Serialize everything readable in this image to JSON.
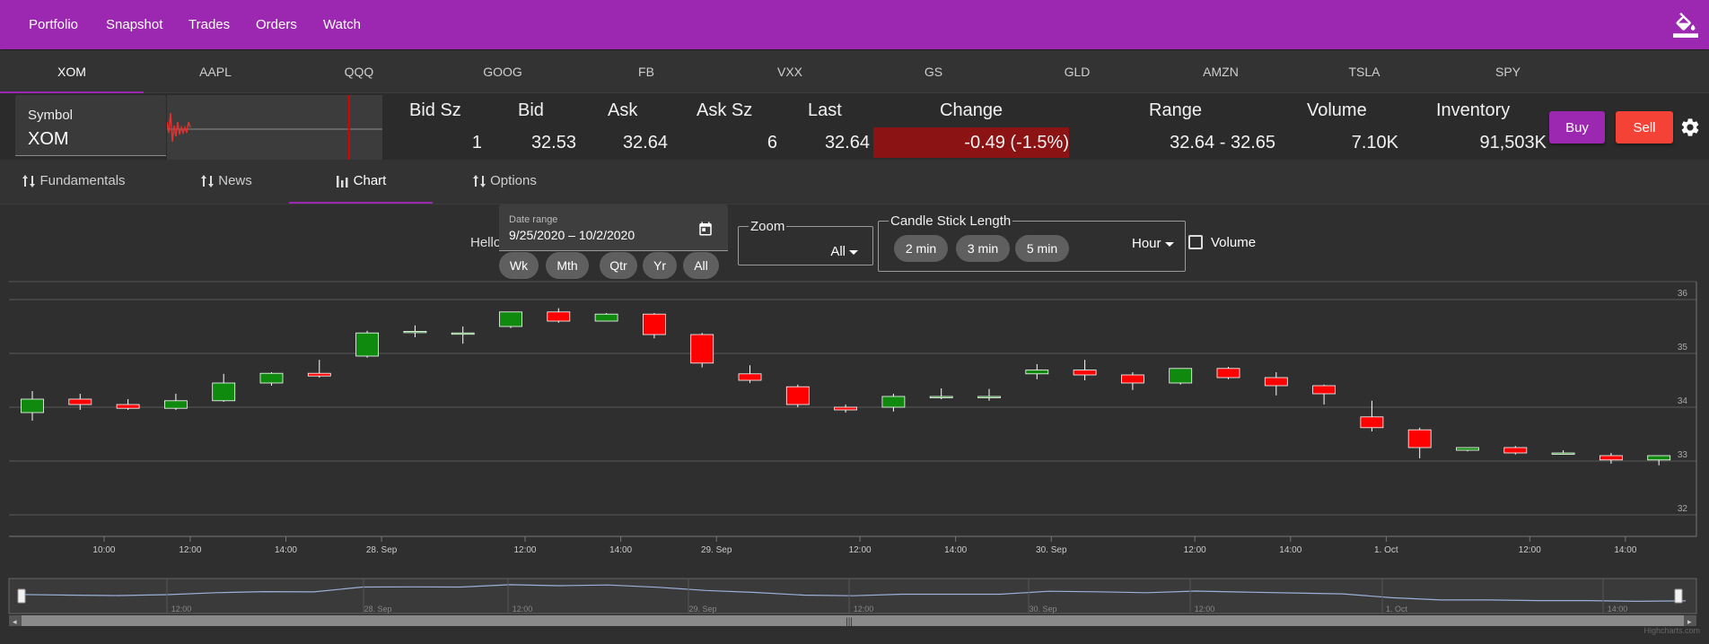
{
  "nav": {
    "items": [
      {
        "id": "portfolio",
        "label": "Portfolio"
      },
      {
        "id": "snapshot",
        "label": "Snapshot"
      },
      {
        "id": "trades",
        "label": "Trades"
      },
      {
        "id": "orders",
        "label": "Orders"
      },
      {
        "id": "watch",
        "label": "Watch"
      }
    ],
    "theme_icon": "paint-bucket-icon"
  },
  "symbol_tabs": [
    "XOM",
    "AAPL",
    "QQQ",
    "GOOG",
    "FB",
    "VXX",
    "GS",
    "GLD",
    "AMZN",
    "TSLA",
    "SPY"
  ],
  "active_symbol_tab": "XOM",
  "quote": {
    "symbol_label": "Symbol",
    "symbol_value": "XOM",
    "headers": {
      "bid_sz": "Bid Sz",
      "bid": "Bid",
      "ask": "Ask",
      "ask_sz": "Ask Sz",
      "last": "Last",
      "change": "Change",
      "range": "Range",
      "volume": "Volume",
      "inventory": "Inventory"
    },
    "values": {
      "bid_sz": "1",
      "bid": "32.53",
      "ask": "32.64",
      "ask_sz": "6",
      "last": "32.64",
      "change": "-0.49 (-1.5%)",
      "range": "32.64 - 32.65",
      "volume": "7.10K",
      "inventory": "91,503K"
    },
    "change_color": "#8b1313",
    "buy_label": "Buy",
    "sell_label": "Sell"
  },
  "sub_tabs": [
    {
      "id": "fundamentals",
      "label": "Fundamentals",
      "icon": "sort-arrows-icon"
    },
    {
      "id": "news",
      "label": "News",
      "icon": "sort-arrows-icon"
    },
    {
      "id": "chart",
      "label": "Chart",
      "icon": "bar-chart-icon"
    },
    {
      "id": "options",
      "label": "Options",
      "icon": "sort-arrows-icon"
    }
  ],
  "active_sub_tab": "chart",
  "controls": {
    "hello": "Hello",
    "date_range_label": "Date range",
    "date_range_value": "9/25/2020 – 10/2/2020",
    "period_chips": [
      "Wk",
      "Mth",
      "Qtr",
      "Yr",
      "All"
    ],
    "zoom_label": "Zoom",
    "zoom_value": "All",
    "candle_label": "Candle Stick Length",
    "candle_chips": [
      "2 min",
      "3 min",
      "5 min"
    ],
    "candle_unit": "Hour",
    "volume_label": "Volume",
    "volume_checked": false
  },
  "chart_data": {
    "type": "candlestick",
    "ylim": [
      31.6,
      36.2
    ],
    "y_ticks": [
      32,
      33,
      34,
      35,
      36
    ],
    "x_labels": [
      {
        "i": 1.5,
        "text": "10:00"
      },
      {
        "i": 3.3,
        "text": "12:00"
      },
      {
        "i": 5.3,
        "text": "14:00"
      },
      {
        "i": 7.3,
        "text": "28. Sep"
      },
      {
        "i": 10.3,
        "text": "12:00"
      },
      {
        "i": 12.3,
        "text": "14:00"
      },
      {
        "i": 14.3,
        "text": "29. Sep"
      },
      {
        "i": 17.3,
        "text": "12:00"
      },
      {
        "i": 19.3,
        "text": "14:00"
      },
      {
        "i": 21.3,
        "text": "30. Sep"
      },
      {
        "i": 24.3,
        "text": "12:00"
      },
      {
        "i": 26.3,
        "text": "14:00"
      },
      {
        "i": 28.3,
        "text": "1. Oct"
      },
      {
        "i": 31.3,
        "text": "12:00"
      },
      {
        "i": 33.3,
        "text": "14:00"
      }
    ],
    "candles": [
      {
        "o": 33.9,
        "h": 34.3,
        "l": 33.75,
        "c": 34.15
      },
      {
        "o": 34.15,
        "h": 34.25,
        "l": 33.95,
        "c": 34.05
      },
      {
        "o": 34.05,
        "h": 34.15,
        "l": 33.95,
        "c": 33.98
      },
      {
        "o": 33.98,
        "h": 34.25,
        "l": 33.95,
        "c": 34.12
      },
      {
        "o": 34.12,
        "h": 34.62,
        "l": 34.1,
        "c": 34.45
      },
      {
        "o": 34.45,
        "h": 34.65,
        "l": 34.4,
        "c": 34.63
      },
      {
        "o": 34.63,
        "h": 34.88,
        "l": 34.55,
        "c": 34.58
      },
      {
        "o": 34.95,
        "h": 35.42,
        "l": 34.92,
        "c": 35.38
      },
      {
        "o": 35.41,
        "h": 35.52,
        "l": 35.3,
        "c": 35.41
      },
      {
        "o": 35.38,
        "h": 35.5,
        "l": 35.18,
        "c": 35.38
      },
      {
        "o": 35.5,
        "h": 35.75,
        "l": 35.47,
        "c": 35.77
      },
      {
        "o": 35.77,
        "h": 35.84,
        "l": 35.57,
        "c": 35.6
      },
      {
        "o": 35.6,
        "h": 35.75,
        "l": 35.6,
        "c": 35.73
      },
      {
        "o": 35.73,
        "h": 35.75,
        "l": 35.28,
        "c": 35.35
      },
      {
        "o": 35.35,
        "h": 35.38,
        "l": 34.74,
        "c": 34.82
      },
      {
        "o": 34.62,
        "h": 34.78,
        "l": 34.45,
        "c": 34.5
      },
      {
        "o": 34.38,
        "h": 34.42,
        "l": 34.0,
        "c": 34.05
      },
      {
        "o": 34.0,
        "h": 34.05,
        "l": 33.9,
        "c": 33.95
      },
      {
        "o": 34.0,
        "h": 34.25,
        "l": 33.92,
        "c": 34.2
      },
      {
        "o": 34.2,
        "h": 34.35,
        "l": 34.15,
        "c": 34.2
      },
      {
        "o": 34.2,
        "h": 34.34,
        "l": 34.12,
        "c": 34.2
      },
      {
        "o": 34.62,
        "h": 34.8,
        "l": 34.52,
        "c": 34.69
      },
      {
        "o": 34.69,
        "h": 34.88,
        "l": 34.5,
        "c": 34.6
      },
      {
        "o": 34.6,
        "h": 34.65,
        "l": 34.32,
        "c": 34.45
      },
      {
        "o": 34.45,
        "h": 34.72,
        "l": 34.42,
        "c": 34.72
      },
      {
        "o": 34.72,
        "h": 34.75,
        "l": 34.52,
        "c": 34.55
      },
      {
        "o": 34.55,
        "h": 34.65,
        "l": 34.22,
        "c": 34.4
      },
      {
        "o": 34.4,
        "h": 34.42,
        "l": 34.05,
        "c": 34.25
      },
      {
        "o": 33.82,
        "h": 34.12,
        "l": 33.55,
        "c": 33.62
      },
      {
        "o": 33.58,
        "h": 33.62,
        "l": 33.05,
        "c": 33.25
      },
      {
        "o": 33.2,
        "h": 33.25,
        "l": 33.18,
        "c": 33.25
      },
      {
        "o": 33.25,
        "h": 33.28,
        "l": 33.12,
        "c": 33.15
      },
      {
        "o": 33.15,
        "h": 33.2,
        "l": 33.12,
        "c": 33.15
      },
      {
        "o": 33.1,
        "h": 33.15,
        "l": 32.95,
        "c": 33.02
      },
      {
        "o": 33.02,
        "h": 33.1,
        "l": 32.92,
        "c": 33.1
      }
    ],
    "up_color": "#0f8a0f",
    "down_color": "#ff0000",
    "navigator_labels": [
      "12:00",
      "28. Sep",
      "12:00",
      "29. Sep",
      "12:00",
      "30. Sep",
      "12:00",
      "1. Oct",
      "14:00"
    ],
    "credit": "Highcharts.com"
  }
}
